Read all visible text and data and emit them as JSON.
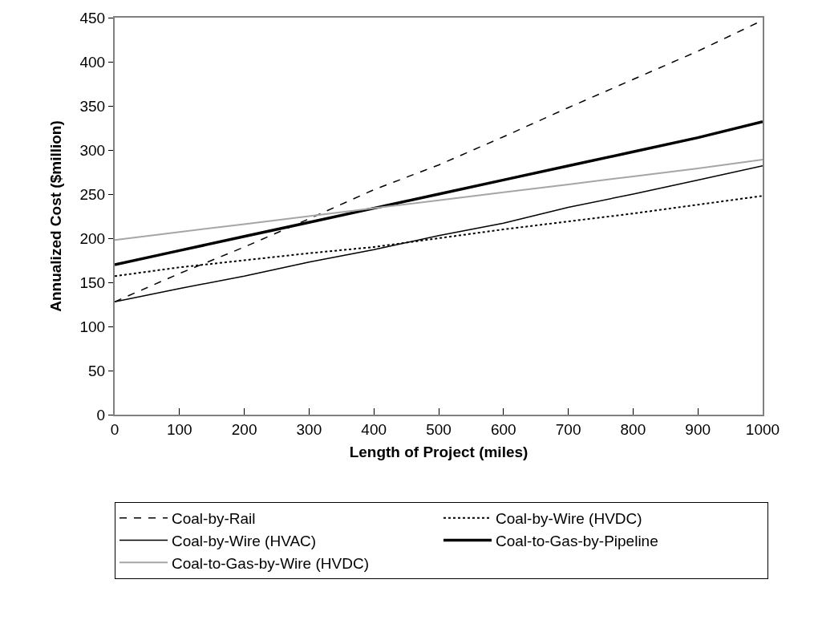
{
  "chart_data": {
    "type": "line",
    "xlabel": "Length of Project (miles)",
    "ylabel": "Annualized Cost ($million)",
    "x": [
      0,
      100,
      200,
      300,
      400,
      500,
      600,
      700,
      800,
      900,
      1000
    ],
    "xlim": [
      0,
      1000
    ],
    "xticks": [
      0,
      100,
      200,
      300,
      400,
      500,
      600,
      700,
      800,
      900,
      1000
    ],
    "ylim": [
      0,
      450
    ],
    "yticks": [
      0,
      50,
      100,
      150,
      200,
      250,
      300,
      350,
      400,
      450
    ],
    "grid": false,
    "legend": "bottom",
    "marker": "none",
    "series": [
      {
        "name": "Coal-by-Rail",
        "color": "#000000",
        "line_style": "dashed",
        "values": [
          128,
          160,
          190,
          222,
          255,
          283,
          315,
          348,
          380,
          412,
          447
        ]
      },
      {
        "name": "Coal-by-Wire (HVDC)",
        "color": "#000000",
        "line_style": "dotted",
        "values": [
          157,
          167,
          175,
          183,
          190,
          200,
          210,
          219,
          228,
          238,
          248
        ]
      },
      {
        "name": "Coal-by-Wire (HVAC)",
        "color": "#000000",
        "line_style": "solid",
        "values": [
          128,
          143,
          157,
          173,
          187,
          203,
          217,
          235,
          250,
          266,
          282
        ]
      },
      {
        "name": "Coal-to-Gas-by-Pipeline",
        "color": "#000000",
        "line_style": "solid",
        "values": [
          170,
          186,
          202,
          218,
          234,
          250,
          266,
          282,
          298,
          314,
          332
        ]
      },
      {
        "name": "Coal-to-Gas-by-Wire (HVDC)",
        "color": "#a6a6a6",
        "line_style": "solid",
        "values": [
          198,
          207,
          216,
          225,
          234,
          243,
          252,
          261,
          270,
          279,
          289
        ]
      }
    ]
  }
}
